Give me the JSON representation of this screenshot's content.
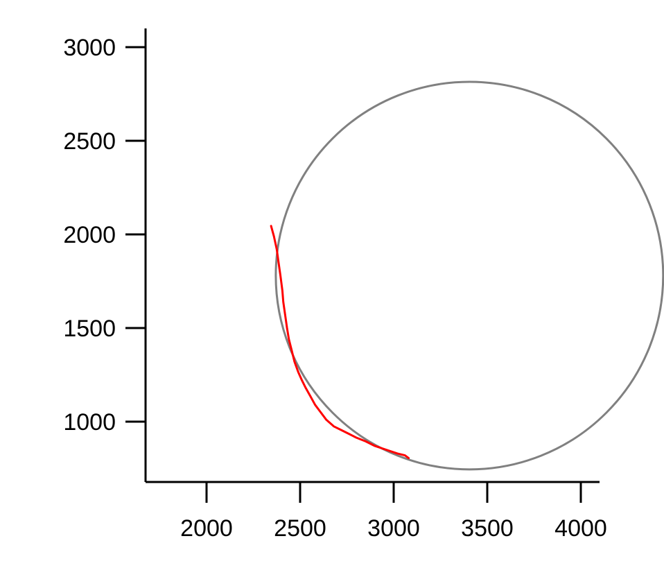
{
  "chart_data": {
    "type": "line",
    "title": "",
    "xlabel": "",
    "ylabel": "",
    "xlim": [
      1660,
      4100
    ],
    "ylim": [
      690,
      3090
    ],
    "x_ticks": [
      2000,
      2500,
      3000,
      3500,
      4000
    ],
    "y_ticks": [
      1000,
      1500,
      2000,
      2500,
      3000
    ],
    "grid": false,
    "legend": "none",
    "series": [
      {
        "kind": "circle",
        "color": "#808080",
        "center": [
          3405,
          1780
        ],
        "radius": 1035
      },
      {
        "kind": "trajectory",
        "color": "#ff0000",
        "x": [
          2345,
          2360,
          2375,
          2385,
          2395,
          2405,
          2410,
          2420,
          2430,
          2440,
          2455,
          2470,
          2490,
          2510,
          2530,
          2555,
          2580,
          2610,
          2640,
          2680,
          2720,
          2760,
          2800,
          2850,
          2900,
          2960,
          3020,
          3060,
          3080
        ],
        "y": [
          2045,
          1990,
          1920,
          1850,
          1780,
          1700,
          1640,
          1570,
          1500,
          1440,
          1380,
          1320,
          1265,
          1220,
          1180,
          1135,
          1090,
          1050,
          1010,
          975,
          955,
          935,
          915,
          895,
          870,
          850,
          830,
          820,
          805
        ]
      }
    ]
  }
}
